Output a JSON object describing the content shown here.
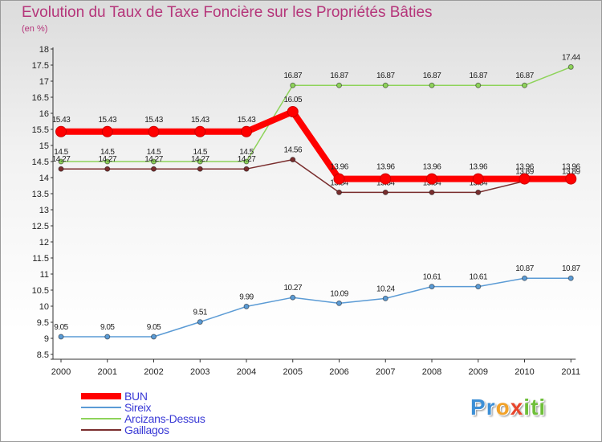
{
  "title": "Evolution du Taux de Taxe Foncière sur les Propriétés Bâties",
  "unit": "(en %)",
  "chart_data": {
    "type": "line",
    "title": "Evolution du Taux de Taxe Foncière sur les Propriétés Bâties",
    "ylabel": "(en %)",
    "xlabel": "",
    "ylim": [
      8.5,
      18
    ],
    "y_ticks": [
      "8.5",
      "9",
      "9.5",
      "10",
      "10.5",
      "11",
      "11.5",
      "12",
      "12.5",
      "13",
      "13.5",
      "14",
      "14.5",
      "15",
      "15.5",
      "16",
      "16.5",
      "17",
      "17.5",
      "18"
    ],
    "categories": [
      "2000",
      "2001",
      "2002",
      "2003",
      "2004",
      "2005",
      "2006",
      "2007",
      "2008",
      "2009",
      "2010",
      "2011"
    ],
    "series": [
      {
        "name": "BUN",
        "color": "#ff0000",
        "values": [
          15.43,
          15.43,
          15.43,
          15.43,
          15.43,
          16.05,
          13.96,
          13.96,
          13.96,
          13.96,
          13.96,
          13.96
        ],
        "labels": [
          "15.43",
          "15.43",
          "15.43",
          "15.43",
          "15.43",
          "16.05",
          "13.96",
          "13.96",
          "13.96",
          "13.96",
          "13.96",
          "13.96"
        ]
      },
      {
        "name": "Sireix",
        "color": "#5b9bd5",
        "values": [
          9.05,
          9.05,
          9.05,
          9.51,
          9.99,
          10.27,
          10.09,
          10.24,
          10.61,
          10.61,
          10.87,
          10.87
        ],
        "labels": [
          "9.05",
          "9.05",
          "9.05",
          "9.51",
          "9.99",
          "10.27",
          "10.09",
          "10.24",
          "10.61",
          "10.61",
          "10.87",
          "10.87"
        ]
      },
      {
        "name": "Arcizans-Dessus",
        "color": "#8ed35a",
        "values": [
          14.5,
          14.5,
          14.5,
          14.5,
          14.5,
          16.87,
          16.87,
          16.87,
          16.87,
          16.87,
          16.87,
          17.44
        ],
        "labels": [
          "14.5",
          "14.5",
          "14.5",
          "14.5",
          "14.5",
          "16.87",
          "16.87",
          "16.87",
          "16.87",
          "16.87",
          "16.87",
          "17.44"
        ]
      },
      {
        "name": "Gaillagos",
        "color": "#7a2e2e",
        "values": [
          14.27,
          14.27,
          14.27,
          14.27,
          14.27,
          14.56,
          13.54,
          13.54,
          13.54,
          13.54,
          13.89,
          13.89
        ],
        "labels": [
          "14.27",
          "14.27",
          "14.27",
          "14.27",
          "14.27",
          "14.56",
          "13.54",
          "13.54",
          "13.54",
          "13.54",
          "13.89",
          "13.89"
        ]
      }
    ],
    "legend_position": "bottom-left",
    "grid": false
  },
  "legend": [
    {
      "label": "BUN"
    },
    {
      "label": "Sireix"
    },
    {
      "label": "Arcizans-Dessus"
    },
    {
      "label": "Gaillagos"
    }
  ],
  "logo": {
    "letters": [
      "P",
      "r",
      "o",
      "x",
      "i",
      "t",
      "i"
    ]
  }
}
